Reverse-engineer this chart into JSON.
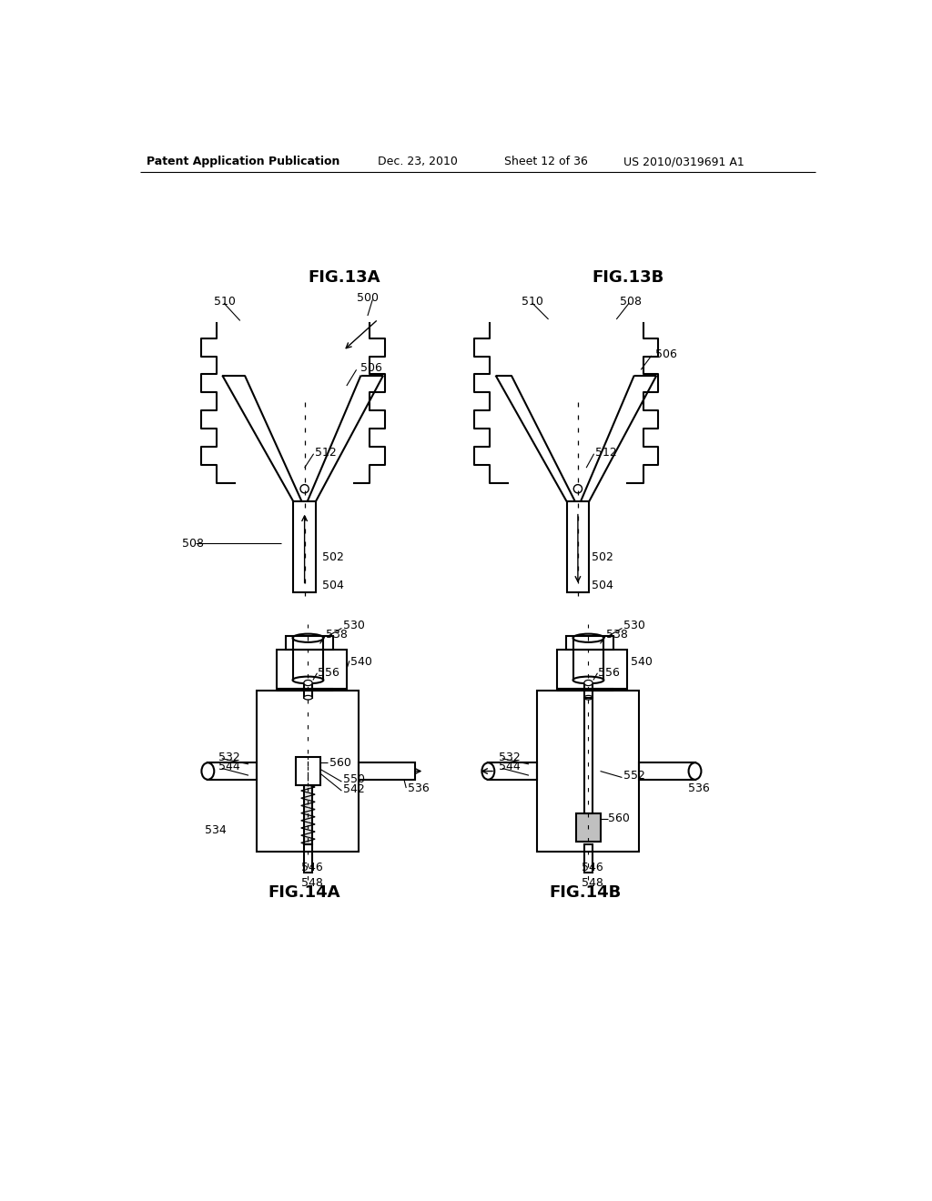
{
  "bg_color": "#ffffff",
  "header_text": "Patent Application Publication",
  "header_date": "Dec. 23, 2010",
  "header_sheet": "Sheet 12 of 36",
  "header_patent": "US 2010/0319691 A1",
  "fig13a_label": "FIG.13A",
  "fig13b_label": "FIG.13B",
  "fig14a_label": "FIG.14A",
  "fig14b_label": "FIG.14B",
  "lw": 1.5,
  "lw_thin": 0.9,
  "fs_label": 9,
  "fs_fig": 13
}
